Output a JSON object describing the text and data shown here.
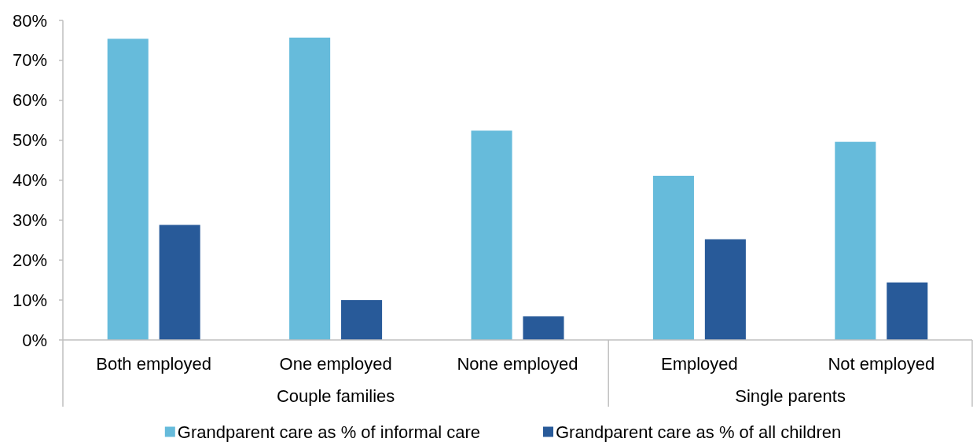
{
  "chart_data": {
    "type": "bar",
    "categories": [
      "Both employed",
      "One employed",
      "None employed",
      "Employed",
      "Not employed"
    ],
    "series": [
      {
        "name": "Grandparent care as % of informal care",
        "color": "#66bbdb",
        "values": [
          75.4,
          75.7,
          52.4,
          41.1,
          49.6
        ]
      },
      {
        "name": "Grandparent care as % of all children",
        "color": "#285a99",
        "values": [
          28.8,
          10.0,
          5.9,
          25.2,
          14.4
        ]
      }
    ],
    "ylim": [
      0,
      80
    ],
    "yticks": [
      {
        "value": 0,
        "label": "0%"
      },
      {
        "value": 10,
        "label": "10%"
      },
      {
        "value": 20,
        "label": "20%"
      },
      {
        "value": 30,
        "label": "30%"
      },
      {
        "value": 40,
        "label": "40%"
      },
      {
        "value": 50,
        "label": "50%"
      },
      {
        "value": 60,
        "label": "60%"
      },
      {
        "value": 70,
        "label": "70%"
      },
      {
        "value": 80,
        "label": "80%"
      }
    ],
    "legend": "bottom",
    "annotations": [
      "Couple families",
      "Single parents"
    ]
  }
}
